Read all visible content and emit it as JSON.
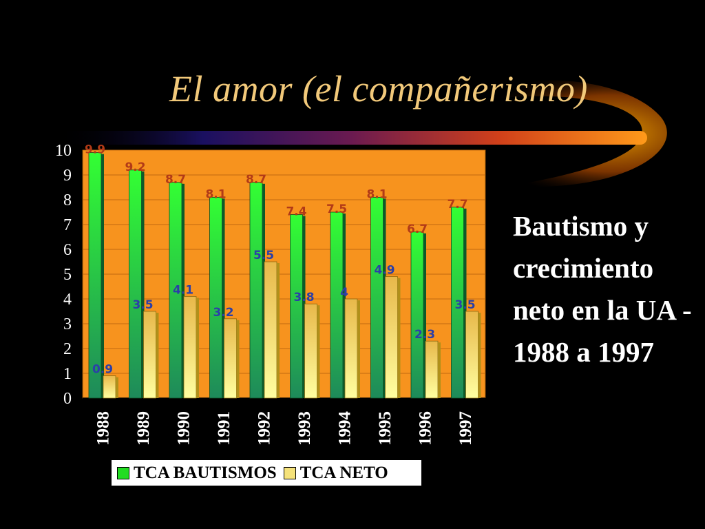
{
  "slide": {
    "title": "El amor (el compañerismo)",
    "side_text": "Bautismo y crecimiento neto en la UA - 1988 a 1997"
  },
  "colors": {
    "background": "#000000",
    "plot_background": "#F7931E",
    "title": "#F2C97A",
    "series1": "#22DD22",
    "series2": "#F5E27A",
    "label1": "#B23A17",
    "label2": "#2B3FA8"
  },
  "chart_data": {
    "type": "bar",
    "categories": [
      "1988",
      "1989",
      "1990",
      "1991",
      "1992",
      "1993",
      "1994",
      "1995",
      "1996",
      "1997"
    ],
    "series": [
      {
        "name": "TCA BAUTISMOS",
        "values": [
          9.9,
          9.2,
          8.7,
          8.1,
          8.7,
          7.4,
          7.5,
          8.1,
          6.7,
          7.7
        ]
      },
      {
        "name": "TCA NETO",
        "values": [
          0.9,
          3.5,
          4.1,
          3.2,
          5.5,
          3.8,
          4,
          4.9,
          2.3,
          3.5
        ]
      }
    ],
    "ylim": [
      0,
      10
    ],
    "yticks": [
      "0",
      "1",
      "2",
      "3",
      "4",
      "5",
      "6",
      "7",
      "8",
      "9",
      "10"
    ],
    "grid": true,
    "legend": "bottom"
  }
}
